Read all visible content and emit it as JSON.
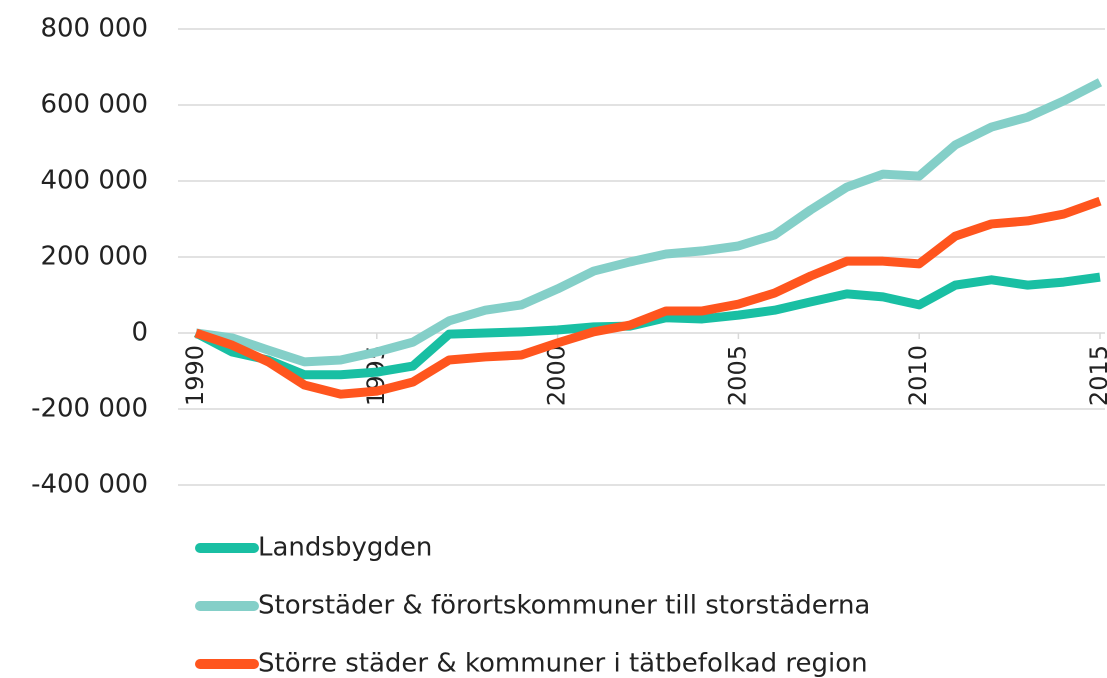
{
  "chart_data": {
    "type": "line",
    "x": [
      1990,
      1991,
      1992,
      1993,
      1994,
      1995,
      1996,
      1997,
      1998,
      1999,
      2000,
      2001,
      2002,
      2003,
      2004,
      2005,
      2006,
      2007,
      2008,
      2009,
      2010,
      2011,
      2012,
      2013,
      2014,
      2015
    ],
    "series": [
      {
        "name": "Landsbygden",
        "color": "#19bfa3",
        "values": [
          0,
          -50000,
          -71000,
          -110000,
          -110000,
          -103000,
          -87000,
          -3000,
          0,
          3000,
          8000,
          16000,
          18000,
          40000,
          37000,
          47000,
          60000,
          82000,
          103000,
          95000,
          74000,
          126000,
          140000,
          126000,
          134000,
          147000
        ]
      },
      {
        "name": "Storstäder & förortskommuner till storstäderna",
        "color": "#84cfc8",
        "values": [
          0,
          -13000,
          -45000,
          -76000,
          -71000,
          -50000,
          -24000,
          32000,
          60000,
          74000,
          116000,
          163000,
          187000,
          208000,
          216000,
          229000,
          258000,
          324000,
          384000,
          418000,
          413000,
          495000,
          542000,
          568000,
          611000,
          660000
        ]
      },
      {
        "name": "Större städer & kommuner i tätbefolkad region",
        "color": "#ff551e",
        "values": [
          0,
          -32000,
          -76000,
          -137000,
          -161000,
          -153000,
          -129000,
          -71000,
          -63000,
          -58000,
          -26000,
          3000,
          21000,
          58000,
          58000,
          76000,
          105000,
          150000,
          189000,
          189000,
          182000,
          255000,
          287000,
          295000,
          313000,
          347000
        ]
      }
    ],
    "xlim": [
      1990,
      2015
    ],
    "xticks": [
      1990,
      1995,
      2000,
      2005,
      2010,
      2015
    ],
    "ylim": [
      -400000,
      800000
    ],
    "yticks": [
      {
        "value": -400000,
        "label": "-400 000"
      },
      {
        "value": -200000,
        "label": "-200 000"
      },
      0,
      {
        "value": 200000,
        "label": "200 000"
      },
      {
        "value": 400000,
        "label": "400 000"
      },
      {
        "value": 600000,
        "label": "600 000"
      },
      {
        "value": 800000,
        "label": "800 000"
      }
    ],
    "grid": true
  }
}
